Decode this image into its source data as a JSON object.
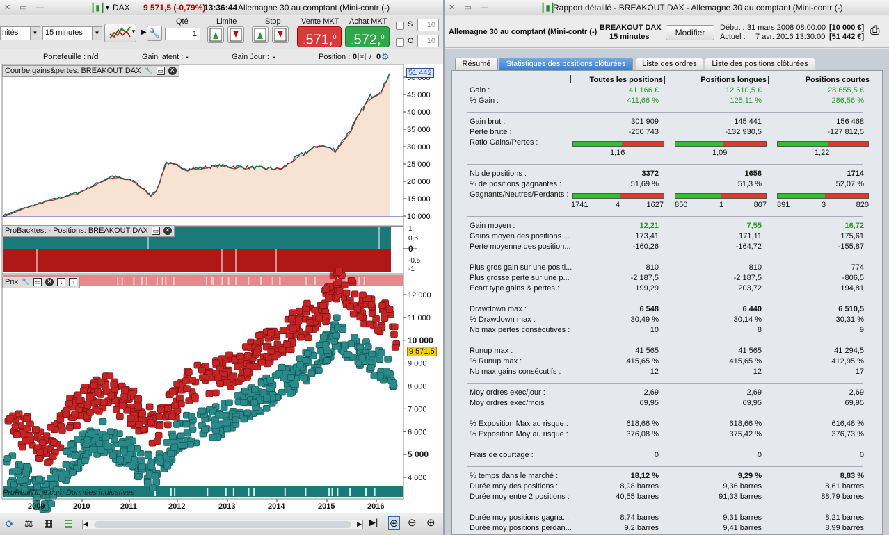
{
  "left": {
    "title": {
      "instrument": "DAX",
      "change": "9 571,5 (-0,79%)",
      "time": "13:36:44",
      "name": "Allemagne 30 au comptant (Mini-contr (-)"
    },
    "toolbar": {
      "units": "nités",
      "interval": "15 minutes",
      "qty_label": "Qté",
      "qty_value": "1",
      "limit_label": "Limite",
      "stop_label": "Stop",
      "sell_label": "Vente MKT",
      "buy_label": "Achat MKT",
      "sell_main": "571,",
      "sell_sup": "0",
      "sell_pre": "9",
      "buy_main": "572,",
      "buy_sup": "0",
      "buy_pre": "9",
      "s_label": "S",
      "o_label": "O",
      "s_value": "10",
      "o_value": "10"
    },
    "portfolio": {
      "portefeuille_label": "Portefeuille :",
      "portefeuille_value": "n/d",
      "latent_label": "Gain latent :",
      "latent_value": "-",
      "jour_label": "Gain Jour :",
      "jour_value": "-",
      "position_label": "Position :",
      "position_a": "0",
      "position_b": "0"
    },
    "equity": {
      "title": "Courbe gains&pertes: BREAKOUT DAX",
      "current": "51 442",
      "ticks": [
        "50 000",
        "45 000",
        "40 000",
        "35 000",
        "30 000",
        "25 000",
        "20 000",
        "15 000",
        "10 000"
      ],
      "ymin": 10000,
      "ymax": 51442
    },
    "positions": {
      "title": "ProBacktest - Positions: BREAKOUT DAX",
      "ticks": [
        "1",
        "0,5",
        "0",
        "-0,5",
        "-1"
      ]
    },
    "price": {
      "title": "Prix",
      "current": "9 571,5",
      "ticks": [
        "12 000",
        "11 000",
        "10 000",
        "9 000",
        "8 000",
        "7 000",
        "6 000",
        "5 000",
        "4 000"
      ],
      "watermark": "ProRealTime.com  Données indicatives",
      "years": [
        "2009",
        "2010",
        "2011",
        "2012",
        "2013",
        "2014",
        "2015",
        "2016"
      ],
      "ymin": 3600,
      "ymax": 12400
    }
  },
  "right": {
    "title": "Rapport détaillé - BREAKOUT DAX - Allemagne 30 au comptant (Mini-contr (-)",
    "header": {
      "instrument": "Allemagne 30 au comptant (Mini-contr (-)",
      "strategy": "BREAKOUT DAX",
      "interval": "15 minutes",
      "modify": "Modifier",
      "debut_label": "Début :",
      "debut_date": "31 mars 2008 08:00:00",
      "debut_cap": "[10 000 €]",
      "actuel_label": "Actuel :",
      "actuel_date": "7 avr. 2016 13:30:00",
      "actuel_cap": "[51 442 €]"
    },
    "tabs": [
      "Résumé",
      "Statistiques des positions clôturées",
      "Liste des ordres",
      "Liste des positions clôturées"
    ],
    "columns": [
      "Toutes les positions",
      "Positions longues",
      "Positions courtes"
    ],
    "rows": [
      {
        "label": "Gain :",
        "v": [
          "41 166 €",
          "12 510,5 €",
          "28 655,5 €"
        ],
        "color": "green"
      },
      {
        "label": "% Gain :",
        "v": [
          "411,66 %",
          "125,11 %",
          "286,56 %"
        ],
        "color": "green"
      },
      {
        "sep": true
      },
      {
        "label": "Gain brut :",
        "v": [
          "301 909",
          "145 441",
          "156 468"
        ]
      },
      {
        "label": "Perte brute :",
        "v": [
          "-260 743",
          "-132 930,5",
          "-127 812,5"
        ]
      },
      {
        "label": "Ratio Gains/Pertes :",
        "ratio": [
          0.54,
          0.52,
          0.55
        ],
        "below": [
          "1,16",
          "1,09",
          "1,22"
        ]
      },
      {
        "sep": true
      },
      {
        "label": "Nb de positions :",
        "v": [
          "3372",
          "1658",
          "1714"
        ],
        "bold": true
      },
      {
        "label": "% de positions gagnantes :",
        "v": [
          "51,69 %",
          "51,3 %",
          "52,07 %"
        ]
      },
      {
        "label": "Gagnants/Neutres/Perdants :",
        "ratio": [
          0.52,
          0.51,
          0.52
        ],
        "trip": [
          [
            "1741",
            "4",
            "1627"
          ],
          [
            "850",
            "1",
            "807"
          ],
          [
            "891",
            "3",
            "820"
          ]
        ]
      },
      {
        "sep": true
      },
      {
        "label": "Gain moyen :",
        "v": [
          "12,21",
          "7,55",
          "16,72"
        ],
        "color": "green",
        "bold": true
      },
      {
        "label": "Gains moyen des positions ...",
        "v": [
          "173,41",
          "171,11",
          "175,61"
        ]
      },
      {
        "label": "Perte moyenne des position...",
        "v": [
          "-160,26",
          "-164,72",
          "-155,87"
        ]
      },
      {
        "gap": true
      },
      {
        "label": "Plus gros gain sur une positi...",
        "v": [
          "810",
          "810",
          "774"
        ]
      },
      {
        "label": "Plus grosse perte sur une p...",
        "v": [
          "-2 187,5",
          "-2 187,5",
          "-806,5"
        ]
      },
      {
        "label": "Ecart type gains & pertes :",
        "v": [
          "199,29",
          "203,72",
          "194,81"
        ]
      },
      {
        "gap": true
      },
      {
        "label": "Drawdown max :",
        "v": [
          "6 548",
          "6 440",
          "6 510,5"
        ],
        "bold": true
      },
      {
        "label": "% Drawdown max :",
        "v": [
          "30,49 %",
          "30,14 %",
          "30,31 %"
        ]
      },
      {
        "label": "Nb max pertes consécutives :",
        "v": [
          "10",
          "8",
          "9"
        ]
      },
      {
        "gap": true
      },
      {
        "label": "Runup max :",
        "v": [
          "41 565",
          "41 565",
          "41 294,5"
        ]
      },
      {
        "label": "% Runup max :",
        "v": [
          "415,65 %",
          "415,65 %",
          "412,95 %"
        ]
      },
      {
        "label": "Nb max gains consécutifs :",
        "v": [
          "12",
          "12",
          "17"
        ]
      },
      {
        "sep": true
      },
      {
        "label": "Moy ordres exec/jour :",
        "v": [
          "2,69",
          "2,69",
          "2,69"
        ]
      },
      {
        "label": "Moy ordres exec/mois",
        "v": [
          "69,95",
          "69,95",
          "69,95"
        ]
      },
      {
        "gap": true
      },
      {
        "label": "% Exposition Max au risque :",
        "v": [
          "618,66 %",
          "618,66 %",
          "616,48 %"
        ]
      },
      {
        "label": "% Exposition Moy au risque :",
        "v": [
          "376,08 %",
          "375,42 %",
          "376,73 %"
        ]
      },
      {
        "gap": true
      },
      {
        "label": "Frais de courtage :",
        "v": [
          "0",
          "0",
          "0"
        ]
      },
      {
        "sep": true
      },
      {
        "label": "% temps dans le marché :",
        "v": [
          "18,12 %",
          "9,29 %",
          "8,83 %"
        ],
        "bold": true
      },
      {
        "label": "Durée moy des positions :",
        "v": [
          "8,98 barres",
          "9,36 barres",
          "8,61 barres"
        ]
      },
      {
        "label": "Durée moy entre 2 positions :",
        "v": [
          "40,55 barres",
          "91,33 barres",
          "88,79 barres"
        ]
      },
      {
        "gap": true
      },
      {
        "label": "Durée moy positions gagna...",
        "v": [
          "8,74 barres",
          "9,31 barres",
          "8,21 barres"
        ]
      },
      {
        "label": "Durée moy positions perdan...",
        "v": [
          "9,2 barres",
          "9,41 barres",
          "8,99 barres"
        ]
      }
    ]
  }
}
